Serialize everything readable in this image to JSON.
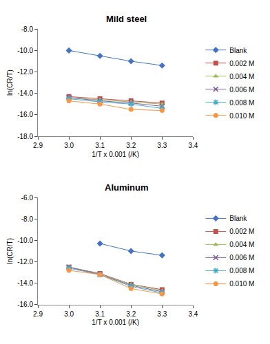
{
  "chart_data": [
    {
      "type": "line",
      "title": "Mild steel",
      "xlabel": "1/T x 0.001 (/K)",
      "ylabel": "ln(CR/T)",
      "x": [
        3.0,
        3.1,
        3.2,
        3.3
      ],
      "xlim": [
        2.9,
        3.4
      ],
      "xticks": [
        2.9,
        {
          "value": 3.0,
          "label": "3.0"
        },
        3.1,
        3.2,
        3.3,
        3.4
      ],
      "ylim": [
        -18,
        -8
      ],
      "yticks": [
        {
          "value": -8,
          "label": "-8.0"
        },
        {
          "value": -10,
          "label": "-10.0"
        },
        {
          "value": -12,
          "label": "-12.0"
        },
        {
          "value": -14,
          "label": "-14.0"
        },
        {
          "value": -16,
          "label": "-16.0"
        },
        {
          "value": -18,
          "label": "-18.0"
        }
      ],
      "grid": false,
      "legend": "right",
      "series": [
        {
          "name": "Blank",
          "color": "#4472c4",
          "marker": "diamond",
          "line_style": "solid",
          "values": [
            -10.0,
            -10.5,
            -11.0,
            -11.4
          ]
        },
        {
          "name": "0.002 M",
          "color": "#c0504d",
          "marker": "square",
          "line_style": "solid",
          "values": [
            -14.3,
            -14.5,
            -14.7,
            -14.9
          ]
        },
        {
          "name": "0.004 M",
          "color": "#9bbb59",
          "marker": "triangle",
          "line_style": "solid",
          "values": [
            -14.4,
            -14.6,
            -14.8,
            -15.0
          ]
        },
        {
          "name": "0.006 M",
          "color": "#8064a2",
          "marker": "x",
          "line_style": "solid",
          "values": [
            -14.4,
            -14.7,
            -14.9,
            -15.2
          ]
        },
        {
          "name": "0.008 M",
          "color": "#4bacc6",
          "marker": "asterisk",
          "line_style": "solid",
          "values": [
            -14.5,
            -14.8,
            -15.0,
            -15.4
          ]
        },
        {
          "name": "0.010 M",
          "color": "#f79646",
          "marker": "circle",
          "line_style": "solid",
          "values": [
            -14.7,
            -15.0,
            -15.5,
            -15.6
          ]
        }
      ]
    },
    {
      "type": "line",
      "title": "Aluminum",
      "xlabel": "1/T x 0.001 (/K)",
      "ylabel": "ln(CR/T)",
      "x": [
        3.0,
        3.1,
        3.2,
        3.3
      ],
      "xlim": [
        2.9,
        3.4
      ],
      "xticks": [
        2.9,
        {
          "value": 3.0,
          "label": "3.0"
        },
        3.1,
        3.2,
        3.3,
        3.4
      ],
      "ylim": [
        -16,
        -6
      ],
      "yticks": [
        {
          "value": -6,
          "label": "-6.0"
        },
        {
          "value": -8,
          "label": "-8.0"
        },
        {
          "value": -10,
          "label": "-10.0"
        },
        {
          "value": -12,
          "label": "-12.0"
        },
        {
          "value": -14,
          "label": "-14.0"
        },
        {
          "value": -16,
          "label": "-16.0"
        }
      ],
      "grid": false,
      "legend": "right",
      "series": [
        {
          "name": "Blank",
          "color": "#4472c4",
          "marker": "diamond",
          "line_style": "solid",
          "values": [
            null,
            -10.3,
            -11.0,
            -11.4
          ]
        },
        {
          "name": "0.002 M",
          "color": "#c0504d",
          "marker": "square",
          "line_style": "solid",
          "values": [
            -12.5,
            -13.1,
            -14.1,
            -14.6
          ]
        },
        {
          "name": "0.004 M",
          "color": "#9bbb59",
          "marker": "triangle",
          "line_style": "solid",
          "values": [
            -12.5,
            -13.2,
            -14.1,
            -14.7
          ]
        },
        {
          "name": "0.006 M",
          "color": "#8064a2",
          "marker": "x",
          "line_style": "solid",
          "values": [
            -12.5,
            -13.2,
            -14.2,
            -14.8
          ]
        },
        {
          "name": "0.008 M",
          "color": "#4bacc6",
          "marker": "asterisk",
          "line_style": "solid",
          "values": [
            -12.6,
            -13.2,
            -14.3,
            -14.9
          ]
        },
        {
          "name": "0.010 M",
          "color": "#f79646",
          "marker": "circle",
          "line_style": "solid",
          "values": [
            -12.8,
            -13.2,
            -14.5,
            -15.0
          ]
        }
      ]
    }
  ]
}
